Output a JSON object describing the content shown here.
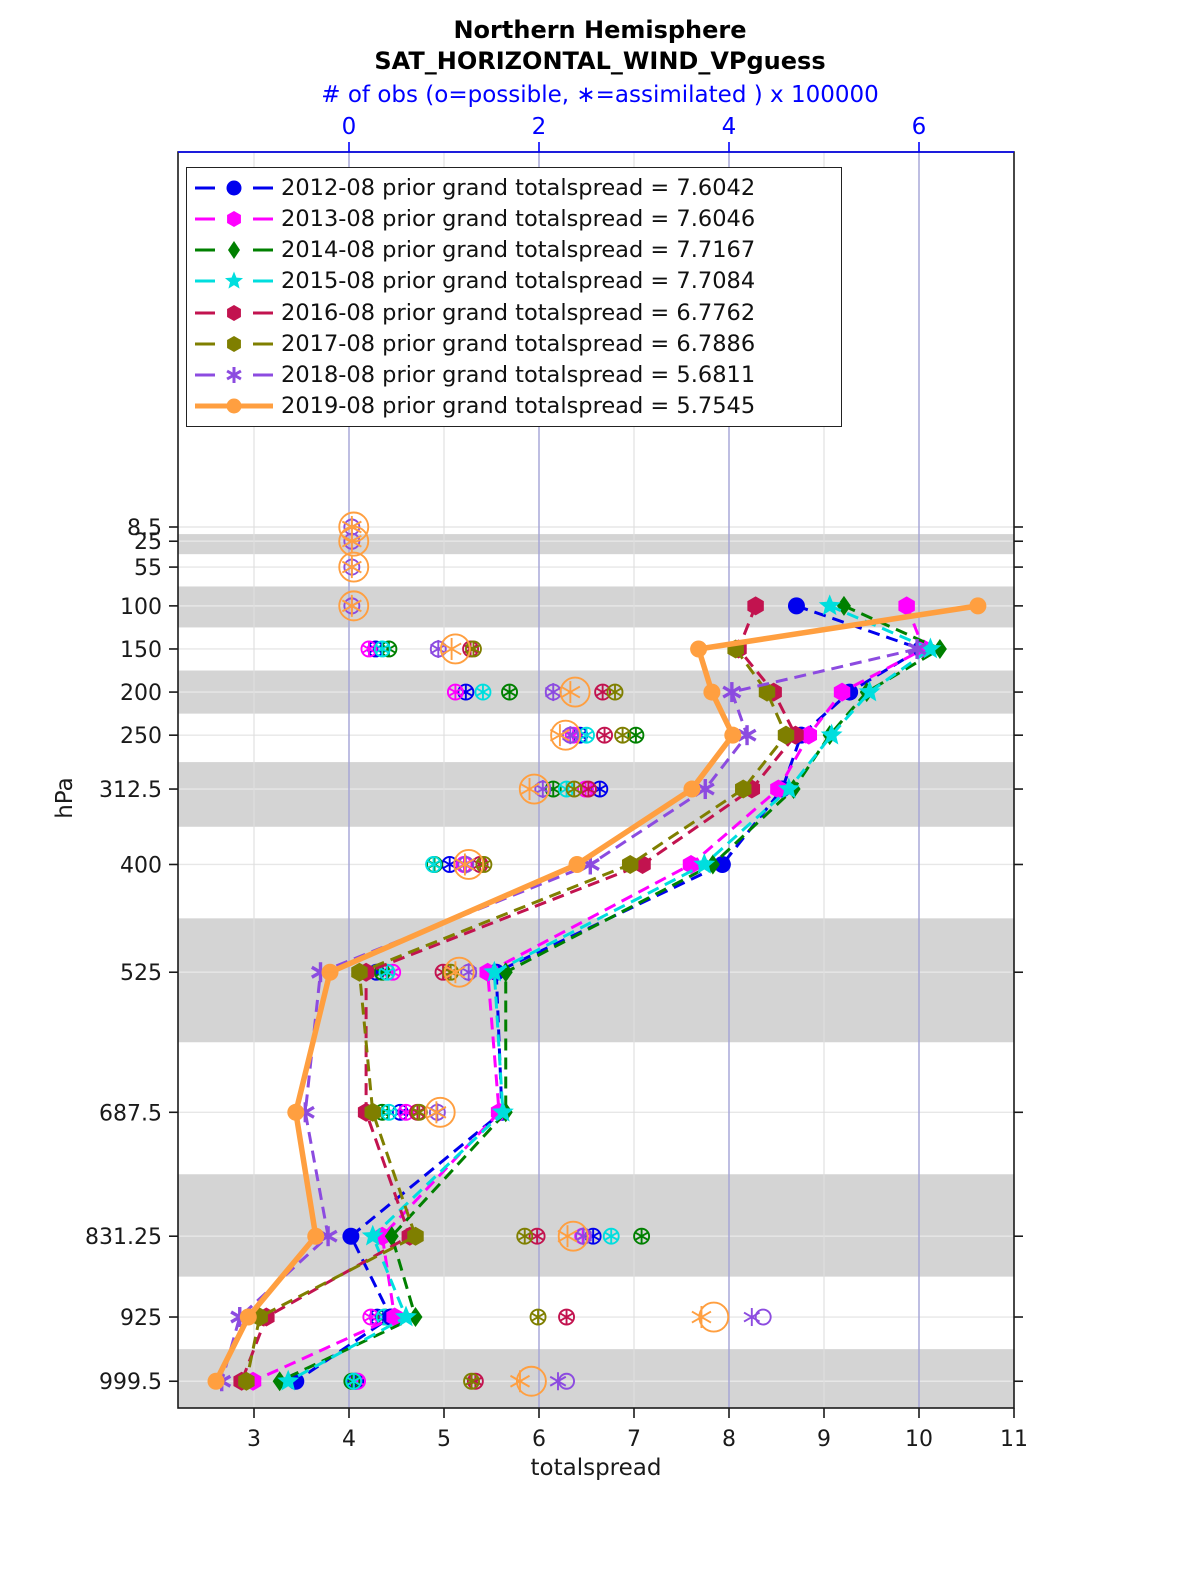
{
  "title": "Northern Hemisphere",
  "subtitle": "SAT_HORIZONTAL_WIND_VPguess",
  "obs_axis_label": "# of obs (o=possible, ∗=assimilated ) x 100000",
  "xlabel": "totalspread",
  "ylabel": "hPa",
  "colors": {
    "band_gray": "#d4d4d4",
    "grid_blue": "#a3a3d6",
    "grid_faint": "#dedede",
    "axis_black": "#1a1a1a",
    "axis_blue": "#0000ff"
  },
  "chart_data": {
    "type": "line",
    "title": "Northern Hemisphere SAT_HORIZONTAL_WIND_VPguess",
    "xlabel_bottom": "totalspread",
    "xlabel_top": "# of obs (o=possible, ∗=assimilated ) x 100000",
    "ylabel": "hPa",
    "x_bottom": {
      "ticks": [
        3,
        4,
        5,
        6,
        7,
        8,
        9,
        10,
        11
      ],
      "range": [
        2.2,
        11.0
      ]
    },
    "x_top": {
      "ticks": [
        0,
        2,
        4,
        6
      ],
      "offset_vs_bottom": 4.0
    },
    "y_levels": [
      8.5,
      25,
      55,
      100,
      150,
      200,
      250,
      312.5,
      400,
      525,
      687.5,
      831.25,
      925,
      999.5
    ],
    "y_shaded_levels": [
      25,
      100,
      200,
      312.5,
      525,
      831.25,
      999.5
    ],
    "grid": true,
    "legend_position": "upper-left",
    "series": [
      {
        "name": "2012-08",
        "legend": "2012-08 prior grand totalspread = 7.6042",
        "grand_totalspread": 7.6042,
        "color": "#0000ee",
        "marker": "circle",
        "line": "dashed",
        "totalspread": [
          null,
          null,
          null,
          8.71,
          10.02,
          9.27,
          8.76,
          8.56,
          7.93,
          5.55,
          5.61,
          4.02,
          4.44,
          3.44
        ],
        "obs": [
          [
            150,
            0.28,
            0.28
          ],
          [
            200,
            1.23,
            1.23
          ],
          [
            250,
            2.43,
            2.43
          ],
          [
            312.5,
            2.64,
            2.64
          ],
          [
            400,
            1.06,
            1.06
          ],
          [
            525,
            0.29,
            0.29
          ],
          [
            687.5,
            0.54,
            0.54
          ],
          [
            831.25,
            2.57,
            2.57
          ],
          [
            925,
            0.3,
            0.3
          ],
          [
            999.5,
            0.07,
            0.07
          ]
        ]
      },
      {
        "name": "2013-08",
        "legend": "2013-08 prior grand totalspread = 7.6046",
        "grand_totalspread": 7.6046,
        "color": "#ff00ff",
        "marker": "hex",
        "line": "dashed",
        "totalspread": [
          null,
          null,
          null,
          9.87,
          10.05,
          9.19,
          8.84,
          8.52,
          7.6,
          5.46,
          5.58,
          4.35,
          4.48,
          2.99
        ],
        "obs": [
          [
            150,
            0.21,
            0.21
          ],
          [
            200,
            1.12,
            1.12
          ],
          [
            250,
            2.36,
            2.36
          ],
          [
            312.5,
            2.49,
            2.49
          ],
          [
            400,
            1.21,
            1.21
          ],
          [
            525,
            0.46,
            0.46
          ],
          [
            687.5,
            0.6,
            0.6
          ],
          [
            831.25,
            2.46,
            2.46
          ],
          [
            925,
            0.23,
            0.23
          ],
          [
            999.5,
            0.09,
            0.09
          ]
        ]
      },
      {
        "name": "2014-08",
        "legend": "2014-08 prior grand totalspread = 7.7167",
        "grand_totalspread": 7.7167,
        "color": "#008000",
        "marker": "diamond",
        "line": "dashed",
        "totalspread": [
          null,
          null,
          null,
          9.21,
          10.22,
          9.45,
          9.06,
          8.68,
          7.83,
          5.65,
          5.65,
          4.45,
          4.7,
          3.27
        ],
        "obs": [
          [
            150,
            0.42,
            0.42
          ],
          [
            200,
            1.69,
            1.69
          ],
          [
            250,
            3.02,
            3.02
          ],
          [
            312.5,
            2.15,
            2.15
          ],
          [
            400,
            0.9,
            0.9
          ],
          [
            525,
            0.35,
            0.35
          ],
          [
            687.5,
            0.35,
            0.35
          ],
          [
            831.25,
            3.08,
            3.08
          ],
          [
            925,
            0.38,
            0.38
          ],
          [
            999.5,
            0.03,
            0.03
          ]
        ]
      },
      {
        "name": "2015-08",
        "legend": "2015-08 prior grand totalspread = 7.7084",
        "grand_totalspread": 7.7084,
        "color": "#00dede",
        "marker": "star",
        "line": "dashed",
        "totalspread": [
          null,
          null,
          null,
          9.06,
          10.12,
          9.48,
          9.08,
          8.63,
          7.74,
          5.53,
          5.62,
          4.25,
          4.6,
          3.36
        ],
        "obs": [
          [
            150,
            0.35,
            0.35
          ],
          [
            200,
            1.41,
            1.41
          ],
          [
            250,
            2.5,
            2.5
          ],
          [
            312.5,
            2.29,
            2.29
          ],
          [
            400,
            0.89,
            0.89
          ],
          [
            525,
            0.4,
            0.4
          ],
          [
            687.5,
            0.42,
            0.42
          ],
          [
            831.25,
            2.76,
            2.76
          ],
          [
            925,
            0.37,
            0.37
          ],
          [
            999.5,
            0.05,
            0.05
          ]
        ]
      },
      {
        "name": "2016-08",
        "legend": "2016-08 prior grand totalspread = 6.7762",
        "grand_totalspread": 6.7762,
        "color": "#c2134f",
        "marker": "hex",
        "line": "dashed",
        "totalspread": [
          null,
          null,
          null,
          8.28,
          8.1,
          8.47,
          8.7,
          8.24,
          7.09,
          4.18,
          4.18,
          4.64,
          3.13,
          2.87
        ],
        "obs": [
          [
            150,
            1.28,
            1.28
          ],
          [
            200,
            2.67,
            2.67
          ],
          [
            250,
            2.69,
            2.69
          ],
          [
            312.5,
            2.52,
            2.52
          ],
          [
            400,
            1.38,
            1.38
          ],
          [
            525,
            0.99,
            0.99
          ],
          [
            687.5,
            0.72,
            0.72
          ],
          [
            831.25,
            1.98,
            1.98
          ],
          [
            925,
            2.29,
            2.29
          ],
          [
            999.5,
            1.33,
            1.33
          ]
        ]
      },
      {
        "name": "2017-08",
        "legend": "2017-08 prior grand totalspread = 6.7886",
        "grand_totalspread": 6.7886,
        "color": "#7f7f00",
        "marker": "hex",
        "line": "dashed",
        "totalspread": [
          null,
          null,
          null,
          null,
          8.07,
          8.4,
          8.6,
          8.15,
          6.96,
          4.11,
          4.25,
          4.7,
          3.06,
          2.92
        ],
        "obs": [
          [
            150,
            1.31,
            1.31
          ],
          [
            200,
            2.8,
            2.8
          ],
          [
            250,
            2.88,
            2.88
          ],
          [
            312.5,
            2.37,
            2.37
          ],
          [
            400,
            1.42,
            1.42
          ],
          [
            525,
            1.07,
            1.07
          ],
          [
            687.5,
            0.74,
            0.74
          ],
          [
            831.25,
            1.85,
            1.85
          ],
          [
            925,
            1.99,
            1.99
          ],
          [
            999.5,
            1.29,
            1.29
          ]
        ]
      },
      {
        "name": "2018-08",
        "legend": "2018-08 prior grand totalspread = 5.6811",
        "grand_totalspread": 5.6811,
        "color": "#8c4be0",
        "marker": "asterisk",
        "line": "dashed",
        "totalspread": [
          null,
          null,
          null,
          null,
          9.98,
          8.03,
          8.19,
          7.75,
          6.54,
          3.7,
          3.54,
          3.78,
          2.85,
          2.66
        ],
        "obs": [
          [
            8.5,
            0.03,
            0.03
          ],
          [
            25,
            0.03,
            0.03
          ],
          [
            55,
            0.03,
            0.03
          ],
          [
            100,
            0.03,
            0.03
          ],
          [
            150,
            0.94,
            0.94
          ],
          [
            200,
            2.15,
            2.15
          ],
          [
            250,
            2.33,
            2.33
          ],
          [
            312.5,
            2.04,
            2.04
          ],
          [
            400,
            1.23,
            1.23
          ],
          [
            525,
            1.26,
            1.26
          ],
          [
            687.5,
            0.93,
            0.93
          ],
          [
            831.25,
            2.47,
            2.47
          ],
          [
            925,
            4.24,
            4.36
          ],
          [
            999.5,
            2.2,
            2.29
          ]
        ]
      },
      {
        "name": "2019-08",
        "legend": "2019-08 prior grand totalspread = 5.7545",
        "grand_totalspread": 5.7545,
        "color": "#ff9f40",
        "marker": "circle",
        "line": "solid",
        "totalspread": [
          null,
          null,
          null,
          10.62,
          7.68,
          7.82,
          8.04,
          7.61,
          6.4,
          3.8,
          3.44,
          3.65,
          2.94,
          2.6
        ],
        "obs": [
          [
            8.5,
            0.03,
            0.05
          ],
          [
            25,
            0.03,
            0.05
          ],
          [
            55,
            0.03,
            0.05
          ],
          [
            100,
            0.03,
            0.05
          ],
          [
            150,
            1.08,
            1.12
          ],
          [
            200,
            2.33,
            2.38
          ],
          [
            250,
            2.22,
            2.28
          ],
          [
            312.5,
            1.9,
            1.95
          ],
          [
            400,
            1.22,
            1.26
          ],
          [
            525,
            1.12,
            1.16
          ],
          [
            687.5,
            0.92,
            0.96
          ],
          [
            831.25,
            2.3,
            2.36
          ],
          [
            925,
            3.71,
            3.84
          ],
          [
            999.5,
            1.8,
            1.92
          ]
        ]
      }
    ]
  }
}
